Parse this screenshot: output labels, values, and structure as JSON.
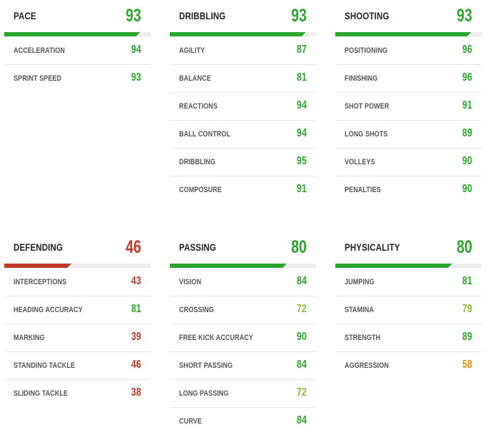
{
  "colors": {
    "elite": "#2ba52b",
    "good": "#8cbf3a",
    "average": "#e08e0b",
    "low": "#c0392b",
    "track": "#eeeeee"
  },
  "categories": [
    {
      "name": "PACE",
      "value": 93,
      "stats": [
        {
          "label": "ACCELERATION",
          "value": 94
        },
        {
          "label": "SPRINT SPEED",
          "value": 93
        }
      ]
    },
    {
      "name": "DRIBBLING",
      "value": 93,
      "stats": [
        {
          "label": "AGILITY",
          "value": 87
        },
        {
          "label": "BALANCE",
          "value": 81
        },
        {
          "label": "REACTIONS",
          "value": 94
        },
        {
          "label": "BALL CONTROL",
          "value": 94
        },
        {
          "label": "DRIBBLING",
          "value": 95
        },
        {
          "label": "COMPOSURE",
          "value": 91
        }
      ]
    },
    {
      "name": "SHOOTING",
      "value": 93,
      "stats": [
        {
          "label": "POSITIONING",
          "value": 96
        },
        {
          "label": "FINISHING",
          "value": 96
        },
        {
          "label": "SHOT POWER",
          "value": 91
        },
        {
          "label": "LONG SHOTS",
          "value": 89
        },
        {
          "label": "VOLLEYS",
          "value": 90
        },
        {
          "label": "PENALTIES",
          "value": 90
        }
      ]
    },
    {
      "name": "DEFENDING",
      "value": 46,
      "stats": [
        {
          "label": "INTERCEPTIONS",
          "value": 43
        },
        {
          "label": "HEADING ACCURACY",
          "value": 81
        },
        {
          "label": "MARKING",
          "value": 39
        },
        {
          "label": "STANDING TACKLE",
          "value": 46
        },
        {
          "label": "SLIDING TACKLE",
          "value": 38
        }
      ]
    },
    {
      "name": "PASSING",
      "value": 80,
      "stats": [
        {
          "label": "VISION",
          "value": 84
        },
        {
          "label": "CROSSING",
          "value": 72
        },
        {
          "label": "FREE KICK ACCURACY",
          "value": 90
        },
        {
          "label": "SHORT PASSING",
          "value": 84
        },
        {
          "label": "LONG PASSING",
          "value": 72
        },
        {
          "label": "CURVE",
          "value": 84
        }
      ]
    },
    {
      "name": "PHYSICALITY",
      "value": 80,
      "stats": [
        {
          "label": "JUMPING",
          "value": 81
        },
        {
          "label": "STAMINA",
          "value": 79
        },
        {
          "label": "STRENGTH",
          "value": 89
        },
        {
          "label": "AGGRESSION",
          "value": 58
        }
      ]
    }
  ]
}
